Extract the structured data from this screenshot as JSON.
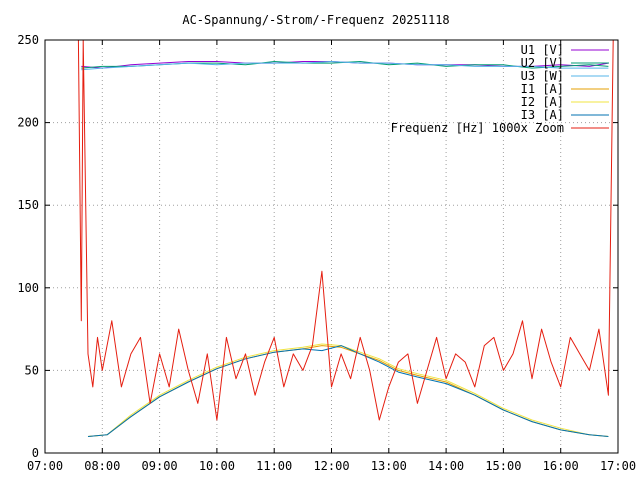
{
  "chart_data": {
    "type": "line",
    "title": "AC-Spannung/-Strom/-Frequenz 20251118",
    "xlabel": "",
    "ylabel": "",
    "xlim": [
      "07:00",
      "17:00"
    ],
    "ylim": [
      0,
      250
    ],
    "grid": true,
    "legend_position": "top-right",
    "x_ticks": [
      "07:00",
      "08:00",
      "09:00",
      "10:00",
      "11:00",
      "12:00",
      "13:00",
      "14:00",
      "15:00",
      "16:00",
      "17:00"
    ],
    "y_ticks": [
      0,
      50,
      100,
      150,
      200,
      250
    ],
    "series": [
      {
        "name": "U1 [V]",
        "color": "#9400d3",
        "x": [
          "07:38",
          "08:00",
          "08:30",
          "09:00",
          "09:30",
          "10:00",
          "10:30",
          "11:00",
          "11:30",
          "12:00",
          "12:30",
          "13:00",
          "13:30",
          "14:00",
          "14:30",
          "15:00",
          "15:30",
          "16:00",
          "16:30",
          "16:50"
        ],
        "values": [
          234,
          233,
          235,
          236,
          237,
          237,
          236,
          236,
          237,
          237,
          236,
          236,
          235,
          235,
          235,
          234,
          234,
          235,
          234,
          236
        ]
      },
      {
        "name": "U2 [V]",
        "color": "#009e73",
        "x": [
          "07:38",
          "08:00",
          "08:30",
          "09:00",
          "09:30",
          "10:00",
          "10:30",
          "11:00",
          "11:30",
          "12:00",
          "12:30",
          "13:00",
          "13:30",
          "14:00",
          "14:30",
          "15:00",
          "15:30",
          "16:00",
          "16:30",
          "16:50"
        ],
        "values": [
          233,
          234,
          234,
          235,
          236,
          236,
          235,
          237,
          236,
          236,
          237,
          235,
          236,
          234,
          235,
          235,
          233,
          234,
          235,
          234
        ]
      },
      {
        "name": "U3 [W]",
        "color": "#56b4e9",
        "x": [
          "07:38",
          "08:00",
          "08:30",
          "09:00",
          "09:30",
          "10:00",
          "10:30",
          "11:00",
          "11:30",
          "12:00",
          "12:30",
          "13:00",
          "13:30",
          "14:00",
          "14:30",
          "15:00",
          "15:30",
          "16:00",
          "16:30",
          "16:50"
        ],
        "values": [
          232,
          233,
          234,
          235,
          236,
          235,
          236,
          236,
          236,
          237,
          236,
          236,
          235,
          235,
          234,
          234,
          234,
          233,
          233,
          233
        ]
      },
      {
        "name": "I1 [A]",
        "color": "#e69f00",
        "x": [
          "07:45",
          "08:05",
          "08:30",
          "09:00",
          "09:30",
          "10:00",
          "10:30",
          "11:00",
          "11:30",
          "11:50",
          "12:10",
          "12:30",
          "12:50",
          "13:10",
          "13:30",
          "14:00",
          "14:30",
          "15:00",
          "15:30",
          "16:00",
          "16:30",
          "16:50"
        ],
        "values": [
          10,
          11,
          22,
          34,
          43,
          51,
          57,
          61,
          63,
          65,
          64,
          60,
          56,
          50,
          47,
          43,
          35,
          26,
          19,
          14,
          11,
          10
        ]
      },
      {
        "name": "I2 [A]",
        "color": "#f0e442",
        "x": [
          "07:45",
          "08:05",
          "08:30",
          "09:00",
          "09:30",
          "10:00",
          "10:30",
          "11:00",
          "11:30",
          "11:50",
          "12:10",
          "12:30",
          "12:50",
          "13:10",
          "13:30",
          "14:00",
          "14:30",
          "15:00",
          "15:30",
          "16:00",
          "16:30",
          "16:50"
        ],
        "values": [
          10,
          11,
          23,
          35,
          44,
          52,
          58,
          62,
          64,
          66,
          65,
          61,
          57,
          51,
          48,
          44,
          36,
          27,
          20,
          15,
          11,
          10
        ]
      },
      {
        "name": "I3 [A]",
        "color": "#0072b2",
        "x": [
          "07:45",
          "08:05",
          "08:30",
          "09:00",
          "09:30",
          "10:00",
          "10:30",
          "11:00",
          "11:30",
          "11:50",
          "12:10",
          "12:30",
          "12:50",
          "13:10",
          "13:30",
          "14:00",
          "14:30",
          "15:00",
          "15:30",
          "16:00",
          "16:30",
          "16:50"
        ],
        "values": [
          10,
          11,
          22,
          34,
          43,
          51,
          57,
          61,
          63,
          62,
          65,
          60,
          55,
          49,
          46,
          42,
          35,
          26,
          19,
          14,
          11,
          10
        ]
      },
      {
        "name": "Frequenz [Hz] 1000x Zoom",
        "color": "#e51e10",
        "x": [
          "07:35",
          "07:38",
          "07:40",
          "07:45",
          "07:50",
          "07:55",
          "08:00",
          "08:10",
          "08:20",
          "08:30",
          "08:40",
          "08:50",
          "09:00",
          "09:10",
          "09:20",
          "09:30",
          "09:40",
          "09:50",
          "10:00",
          "10:10",
          "10:20",
          "10:30",
          "10:40",
          "10:50",
          "11:00",
          "11:10",
          "11:20",
          "11:30",
          "11:40",
          "11:50",
          "12:00",
          "12:10",
          "12:20",
          "12:30",
          "12:40",
          "12:50",
          "13:00",
          "13:10",
          "13:20",
          "13:30",
          "13:40",
          "13:50",
          "14:00",
          "14:10",
          "14:20",
          "14:30",
          "14:40",
          "14:50",
          "15:00",
          "15:10",
          "15:20",
          "15:30",
          "15:40",
          "15:50",
          "16:00",
          "16:10",
          "16:20",
          "16:30",
          "16:40",
          "16:50",
          "16:55"
        ],
        "values": [
          250,
          80,
          250,
          60,
          40,
          70,
          50,
          80,
          40,
          60,
          70,
          30,
          60,
          40,
          75,
          50,
          30,
          60,
          20,
          70,
          45,
          60,
          35,
          55,
          70,
          40,
          60,
          50,
          65,
          110,
          40,
          60,
          45,
          70,
          50,
          20,
          40,
          55,
          60,
          30,
          50,
          70,
          45,
          60,
          55,
          40,
          65,
          70,
          50,
          60,
          80,
          45,
          75,
          55,
          40,
          70,
          60,
          50,
          75,
          35,
          250
        ]
      }
    ]
  }
}
